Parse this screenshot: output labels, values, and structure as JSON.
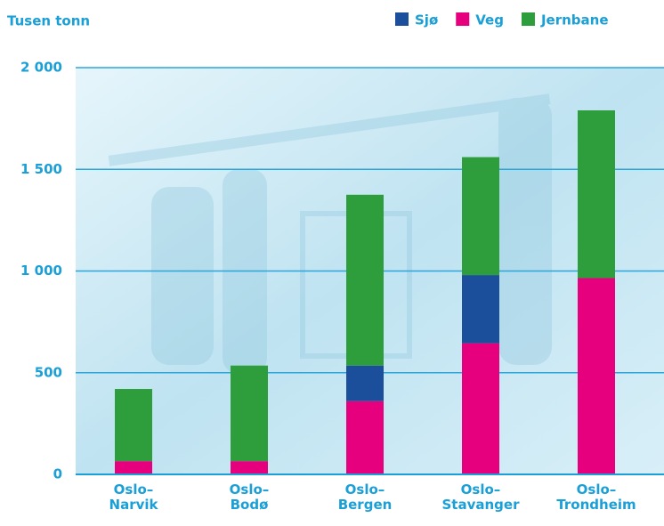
{
  "chart_data": {
    "type": "stacked_bar",
    "y_label": "Tusen tonn",
    "categories": [
      "Oslo–\nNarvik",
      "Oslo–\nBodø",
      "Oslo–\nBergen",
      "Oslo–\nStavanger",
      "Oslo–\nTrondheim"
    ],
    "series": [
      {
        "name": "Sjø",
        "color": "#1b4f9c",
        "values": [
          0,
          0,
          175,
          335,
          0
        ]
      },
      {
        "name": "Veg",
        "color": "#e6007e",
        "values": [
          65,
          65,
          360,
          645,
          965
        ]
      },
      {
        "name": "Jernbane",
        "color": "#2e9e3c",
        "values": [
          355,
          470,
          840,
          580,
          825
        ]
      }
    ],
    "ylim": [
      0,
      2000
    ],
    "yticks": [
      0,
      500,
      {
        "value": 1000,
        "label": "1 000"
      },
      {
        "value": 1500,
        "label": "1 500"
      },
      {
        "value": 2000,
        "label": "2 000"
      }
    ],
    "grid": true
  }
}
